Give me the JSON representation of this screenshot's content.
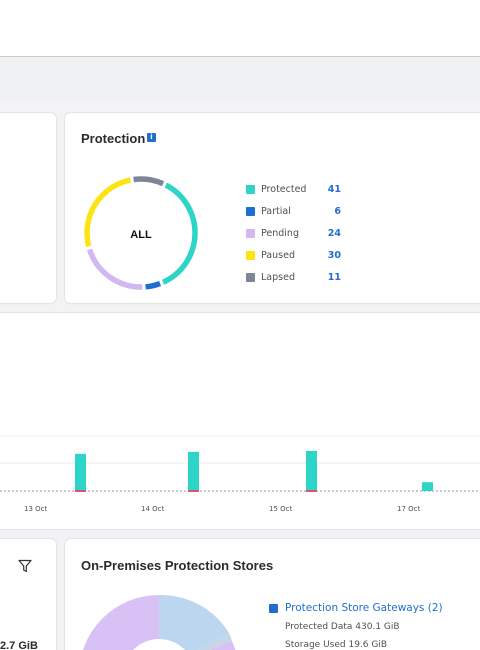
{
  "protection": {
    "title": "Protection",
    "info_icon": "info-icon",
    "center_label": "ALL",
    "legend": [
      {
        "label": "Protected",
        "value": "41",
        "color": "#2dd4c8"
      },
      {
        "label": "Partial",
        "value": "6",
        "color": "#1f6fd1"
      },
      {
        "label": "Pending",
        "value": "24",
        "color": "#d1b8f2"
      },
      {
        "label": "Paused",
        "value": "30",
        "color": "#fde313"
      },
      {
        "label": "Lapsed",
        "value": "11",
        "color": "#7c8697"
      }
    ]
  },
  "chart_data": {
    "type": "bar",
    "categories": [
      "13 Oct",
      "14 Oct",
      "15 Oct",
      "17 Oct"
    ],
    "x_ticks": [
      "13 Oct",
      "14 Oct",
      "15 Oct",
      "17 Oct"
    ],
    "series": [
      {
        "values": [
          38,
          40,
          41,
          9
        ],
        "color": "#2dd4c8"
      },
      {
        "values": [
          2,
          2,
          2,
          0
        ],
        "color": "#e0536d"
      }
    ],
    "title": "",
    "xlabel": "",
    "ylabel": "",
    "grid": true
  },
  "left_bottom": {
    "filter_icon": "filter-icon",
    "value": "2.7 GiB"
  },
  "onprem": {
    "title": "On-Premises Protection Stores",
    "pie_colors": [
      "#bcd6f0",
      "#d8c2f5",
      "#ffffff"
    ],
    "items": [
      {
        "label": "Protection Store Gateways (2)",
        "protected": "Protected Data 430.1 GiB",
        "storage": "Storage Used 19.6 GiB",
        "color": "#1f6fd1"
      }
    ]
  }
}
